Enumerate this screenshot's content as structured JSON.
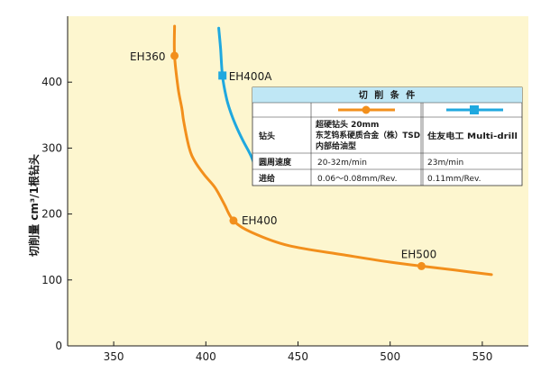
{
  "chart_data": {
    "type": "line",
    "title": "",
    "xlabel": "",
    "ylabel": "切削量 cm³/1根钻头",
    "xlim": [
      325,
      575
    ],
    "ylim": [
      0,
      500
    ],
    "x_ticks": [
      "350",
      "400",
      "450",
      "500",
      "550"
    ],
    "y_ticks": [
      "0",
      "100",
      "200",
      "300",
      "400"
    ],
    "grid": false,
    "colors": {
      "background": "#fdf6cf",
      "orange": "#f28f1c",
      "blue": "#1fa8df",
      "table_header": "#bfe7f5"
    },
    "series": [
      {
        "key": "orange",
        "color": "#f28f1c",
        "points": [
          [
            383,
            485
          ],
          [
            383,
            440
          ],
          [
            385,
            390
          ],
          [
            387,
            360
          ],
          [
            388,
            340
          ],
          [
            391,
            300
          ],
          [
            394,
            280
          ],
          [
            399,
            260
          ],
          [
            405,
            240
          ],
          [
            410,
            215
          ],
          [
            415,
            190
          ],
          [
            425,
            172
          ],
          [
            445,
            152
          ],
          [
            475,
            138
          ],
          [
            500,
            127
          ],
          [
            517,
            121
          ],
          [
            535,
            115
          ],
          [
            555,
            108
          ]
        ]
      },
      {
        "key": "blue",
        "color": "#1fa8df",
        "points": [
          [
            407,
            482
          ],
          [
            408,
            450
          ],
          [
            409,
            410
          ],
          [
            411,
            378
          ],
          [
            413,
            358
          ],
          [
            416,
            336
          ],
          [
            420,
            312
          ],
          [
            425,
            285
          ],
          [
            429,
            250
          ]
        ]
      }
    ],
    "points": [
      {
        "label": "EH360",
        "x": 383,
        "y": 440,
        "series": "orange"
      },
      {
        "label": "EH400A",
        "x": 409,
        "y": 410,
        "series": "blue"
      },
      {
        "label": "EH400",
        "x": 415,
        "y": 190,
        "series": "orange"
      },
      {
        "label": "EH500",
        "x": 517,
        "y": 121,
        "series": "orange"
      }
    ]
  },
  "table": {
    "header": "切 削 条 件",
    "row1_label": "钻头",
    "orange_tool": [
      "超硬钻头 20mm",
      "东芝钨系硬质合金（株）TSD",
      "内部给油型"
    ],
    "blue_tool": "住友电工 Multi-drill",
    "row2_label": "圆周速度",
    "orange_speed": "20-32m/min",
    "blue_speed": "23m/min",
    "row3_label": "进给",
    "orange_feed": "0.06～0.08mm/Rev.",
    "blue_feed": "0.11mm/Rev."
  }
}
